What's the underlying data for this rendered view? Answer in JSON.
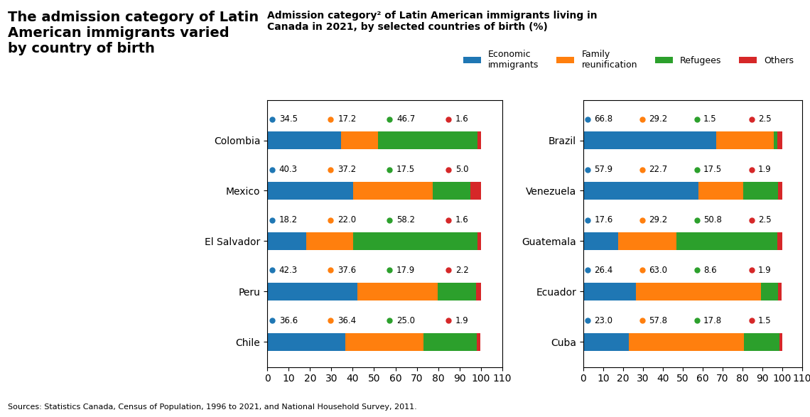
{
  "chart_data": [
    {
      "type": "bar",
      "orientation": "horizontal",
      "stacked": true,
      "data_labels": true,
      "legend": "upper right",
      "title": "The admission category of Latin\nAmerican immigrants varied\nby country of birth",
      "subtitle": "Admission category² of Latin American immigrants living in\nCanada in 2021, by selected countries of birth (%)",
      "annotations": [
        "Sources: Statistics Canada, Census of Population, 1996 to 2021, and National Household Survey, 2011."
      ],
      "categories": [
        "Colombia",
        "Mexico",
        "El Salvador",
        "Peru",
        "Chile"
      ],
      "series": [
        {
          "name": "Economic\nimmigrants",
          "values": [
            34.5,
            40.3,
            18.2,
            42.3,
            36.6
          ]
        },
        {
          "name": "Family\nreunification",
          "values": [
            17.2,
            37.2,
            22.0,
            37.6,
            36.4
          ]
        },
        {
          "name": "Refugees",
          "values": [
            46.7,
            17.5,
            58.2,
            17.9,
            25.0
          ]
        },
        {
          "name": "Others",
          "values": [
            1.6,
            5.0,
            1.6,
            2.2,
            1.9
          ]
        }
      ],
      "xlim": [
        0,
        110
      ],
      "xticks": [
        0,
        10,
        20,
        30,
        40,
        50,
        60,
        70,
        80,
        90,
        100,
        110
      ]
    },
    {
      "type": "bar",
      "orientation": "horizontal",
      "stacked": true,
      "data_labels": true,
      "categories": [
        "Brazil",
        "Venezuela",
        "Guatemala",
        "Ecuador",
        "Cuba"
      ],
      "series": [
        {
          "name": "Economic\nimmigrants",
          "values": [
            66.8,
            57.9,
            17.6,
            26.4,
            23.0
          ]
        },
        {
          "name": "Family\nreunification",
          "values": [
            29.2,
            22.7,
            29.2,
            63.0,
            57.8
          ]
        },
        {
          "name": "Refugees",
          "values": [
            1.5,
            17.5,
            50.8,
            8.6,
            17.8
          ]
        },
        {
          "name": "Others",
          "values": [
            2.5,
            1.9,
            2.5,
            1.9,
            1.5
          ]
        }
      ],
      "xlim": [
        0,
        110
      ],
      "xticks": [
        0,
        10,
        20,
        30,
        40,
        50,
        60,
        70,
        80,
        90,
        100,
        110
      ]
    }
  ]
}
